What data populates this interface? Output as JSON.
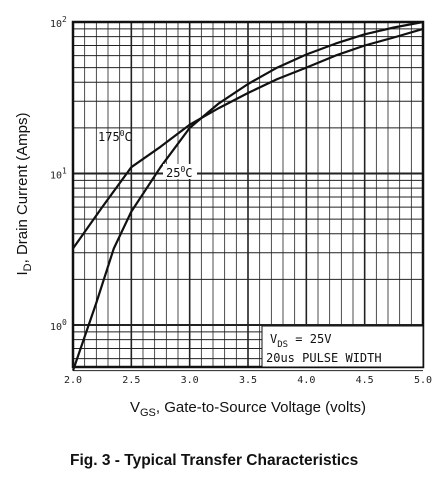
{
  "chart_data": {
    "type": "line",
    "caption": "Fig. 3 - Typical Transfer Characteristics",
    "xlabel": {
      "main": "V",
      "sub": "GS",
      "rest": ", Gate-to-Source Voltage (volts)"
    },
    "ylabel": {
      "main": "I",
      "sub": "D",
      "rest": ", Drain Current (Amps)"
    },
    "xlim": [
      2.0,
      5.0
    ],
    "ylim": [
      0.5,
      100
    ],
    "yscale": "log",
    "grid": true,
    "x_ticks": [
      "2.0",
      "2.5",
      "3.0",
      "3.5",
      "4.0",
      "4.5",
      "5.0"
    ],
    "y_ticks": [
      {
        "value": 1,
        "base": "10",
        "exp": "0"
      },
      {
        "value": 10,
        "base": "10",
        "exp": "1"
      },
      {
        "value": 100,
        "base": "10",
        "exp": "2"
      }
    ],
    "series": [
      {
        "name": "175°C",
        "label_parts": {
          "num": "175",
          "deg": "0",
          "unit": "C"
        },
        "x": [
          2.0,
          2.25,
          2.5,
          2.75,
          3.0,
          3.25,
          3.5,
          3.75,
          4.0,
          4.25,
          4.5,
          4.75,
          5.0
        ],
        "y": [
          3.2,
          6.0,
          11.0,
          15.0,
          21.0,
          27.0,
          34.0,
          42.0,
          50.0,
          60.0,
          70.0,
          79.0,
          90.0
        ]
      },
      {
        "name": "25°C",
        "label_parts": {
          "num": "25",
          "deg": "0",
          "unit": "C"
        },
        "x": [
          2.0,
          2.2,
          2.35,
          2.5,
          2.75,
          3.0,
          3.25,
          3.5,
          3.75,
          4.0,
          4.25,
          4.5,
          4.75,
          5.0
        ],
        "y": [
          0.5,
          1.4,
          3.2,
          5.6,
          11.0,
          20.0,
          29.0,
          39.0,
          50.0,
          61.0,
          72.0,
          83.0,
          92.0,
          100.0
        ]
      }
    ],
    "annotation": {
      "line1": {
        "main": "V",
        "sub": "DS",
        "rest": " = 25V"
      },
      "line2": "20us PULSE WIDTH"
    }
  }
}
